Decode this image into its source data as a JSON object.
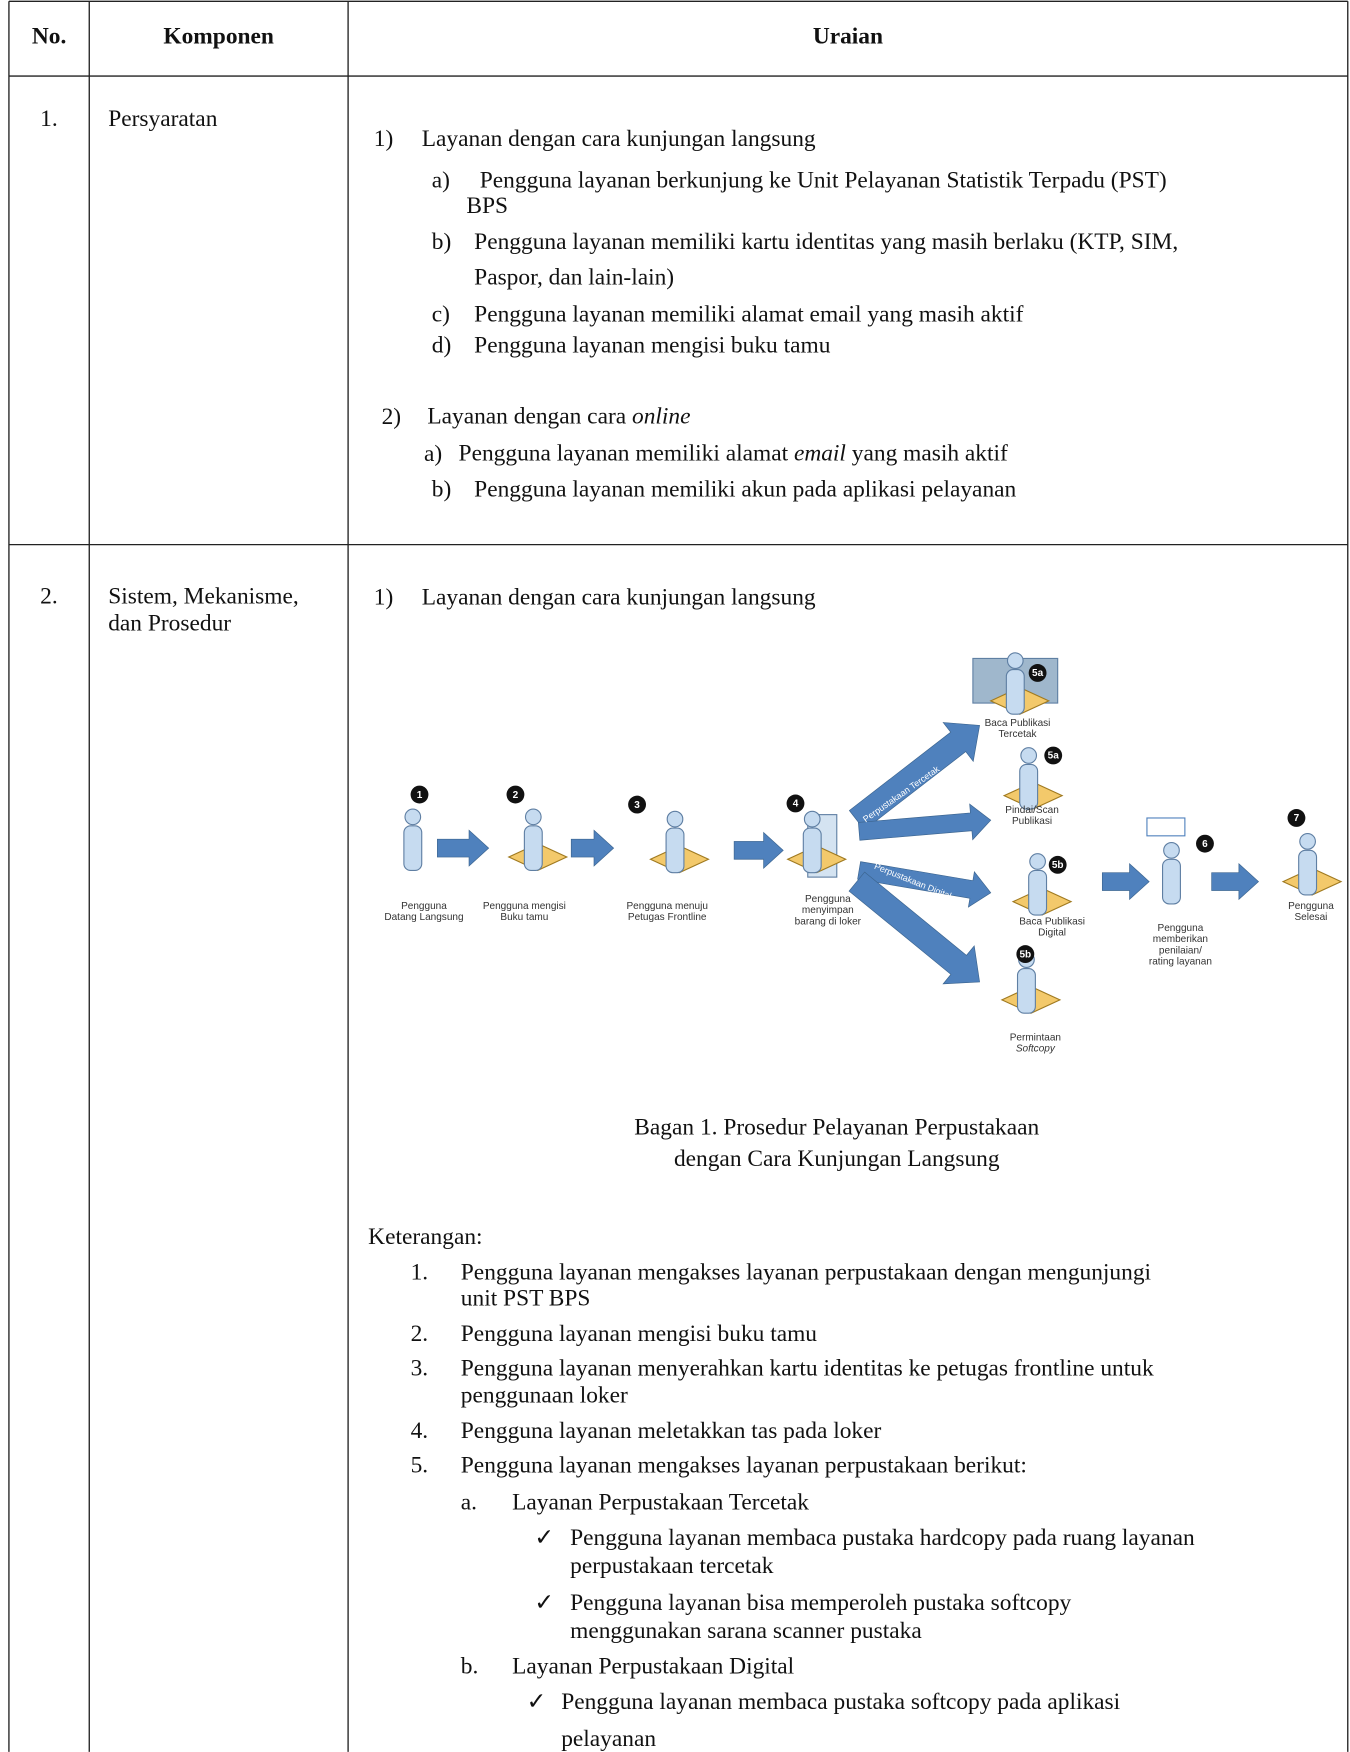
{
  "table": {
    "headers": [
      "No.",
      "Komponen",
      "Uraian"
    ],
    "rows": [
      {
        "no": "1.",
        "komponen": [
          "Persyaratan"
        ],
        "uraian": [
          {
            "marker": "1)",
            "text": "Layanan dengan cara kunjungan langsung",
            "items": [
              {
                "marker": "a)",
                "lines": [
                  "Pengguna layanan berkunjung ke Unit Pelayanan Statistik Terpadu (PST)",
                  "BPS"
                ]
              },
              {
                "marker": "b)",
                "lines": [
                  "Pengguna layanan memiliki kartu identitas yang masih berlaku (KTP, SIM,",
                  "Paspor, dan lain-lain)"
                ]
              },
              {
                "marker": "c)",
                "lines": [
                  "Pengguna layanan memiliki alamat email yang masih aktif"
                ]
              },
              {
                "marker": "d)",
                "lines": [
                  "Pengguna layanan mengisi buku tamu"
                ]
              }
            ]
          },
          {
            "marker": "2)",
            "text": "Layanan dengan cara ",
            "em": "online",
            "items": [
              {
                "marker": "a)",
                "text": "Pengguna layanan memiliki alamat ",
                "em": "email",
                "after": " yang masih aktif"
              },
              {
                "marker": "b)",
                "lines": [
                  "Pengguna layanan memiliki akun pada aplikasi pelayanan"
                ]
              }
            ]
          }
        ]
      },
      {
        "no": "2.",
        "komponen": [
          "Sistem, Mekanisme,",
          "dan Prosedur"
        ],
        "section": {
          "marker": "1)",
          "text": "Layanan dengan cara kunjungan langsung"
        },
        "diagram": {
          "branches": [
            "Perpustakaan Tercetak",
            "Perpustakaan Digital"
          ],
          "steps": [
            {
              "badge": "1",
              "label": [
                "Pengguna",
                "Datang Langsung"
              ]
            },
            {
              "badge": "2",
              "label": [
                "Pengguna mengisi",
                "Buku tamu"
              ]
            },
            {
              "badge": "3",
              "label": [
                "Pengguna menuju",
                "Petugas Frontline"
              ]
            },
            {
              "badge": "4",
              "label": [
                "Pengguna",
                "menyimpan",
                "barang di loker"
              ]
            },
            {
              "badge": "5a",
              "label": [
                "Baca Publikasi",
                "Tercetak"
              ]
            },
            {
              "badge": "5a",
              "label": [
                "Pindai/Scan",
                "Publikasi"
              ]
            },
            {
              "badge": "5b",
              "label": [
                "Baca Publikasi",
                "Digital"
              ]
            },
            {
              "badge": "5b",
              "label": [
                "Permintaan",
                "Softcopy"
              ]
            },
            {
              "badge": "6",
              "label": [
                "Pengguna",
                "memberikan",
                "penilaian/",
                "rating layanan"
              ]
            },
            {
              "badge": "7",
              "label": [
                "Pengguna",
                "Selesai"
              ]
            }
          ]
        },
        "caption": [
          "Bagan 1. Prosedur Pelayanan Perpustakaan",
          "dengan Cara Kunjungan Langsung"
        ],
        "notes_title": "Keterangan:",
        "notes": [
          {
            "marker": "1.",
            "lines": [
              "Pengguna layanan mengakses layanan perpustakaan dengan mengunjungi",
              "unit PST BPS"
            ]
          },
          {
            "marker": "2.",
            "lines": [
              "Pengguna layanan mengisi buku tamu"
            ]
          },
          {
            "marker": "3.",
            "lines": [
              "Pengguna layanan menyerahkan kartu identitas ke petugas frontline untuk",
              "penggunaan loker"
            ]
          },
          {
            "marker": "4.",
            "lines": [
              "Pengguna layanan meletakkan tas pada loker"
            ]
          },
          {
            "marker": "5.",
            "lines": [
              "Pengguna layanan mengakses layanan perpustakaan berikut:"
            ],
            "sub": [
              {
                "marker": "a.",
                "text": "Layanan Perpustakaan Tercetak",
                "checks": [
                  {
                    "marker": "✓",
                    "lines": [
                      "Pengguna layanan membaca pustaka hardcopy pada ruang layanan",
                      "perpustakaan tercetak"
                    ]
                  },
                  {
                    "marker": "✓",
                    "lines": [
                      "Pengguna layanan bisa memperoleh pustaka softcopy",
                      "menggunakan sarana scanner pustaka"
                    ]
                  }
                ]
              },
              {
                "marker": "b.",
                "text": "Layanan Perpustakaan Digital",
                "checks": [
                  {
                    "marker": "✓",
                    "lines": [
                      "Pengguna layanan membaca pustaka softcopy pada aplikasi",
                      "pelayanan"
                    ]
                  }
                ]
              }
            ]
          }
        ]
      }
    ]
  }
}
